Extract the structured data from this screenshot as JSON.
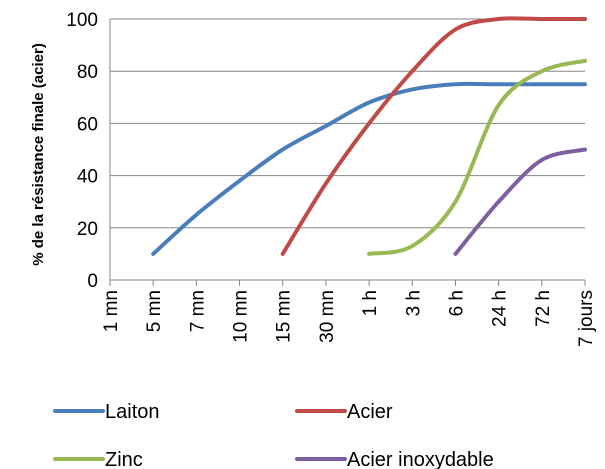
{
  "chart_data": {
    "type": "line",
    "title": "",
    "xlabel": "",
    "ylabel": "% de la résistance finale (acier)",
    "ylim": [
      0,
      100
    ],
    "yticks": [
      0,
      20,
      40,
      60,
      80,
      100
    ],
    "categories": [
      "1 mn",
      "5 mn",
      "7 mn",
      "10 mn",
      "15 mn",
      "30 mn",
      "1 h",
      "3 h",
      "6 h",
      "24 h",
      "72 h",
      "7 jours"
    ],
    "grid": true,
    "legend_position": "bottom",
    "series": [
      {
        "name": "Laiton",
        "color": "#4a7ebb",
        "points": [
          [
            1,
            10
          ],
          [
            2,
            25
          ],
          [
            3,
            38
          ],
          [
            4,
            50
          ],
          [
            5,
            59
          ],
          [
            6,
            68
          ],
          [
            7,
            73
          ],
          [
            8,
            75
          ],
          [
            9,
            75
          ],
          [
            10,
            75
          ],
          [
            11,
            75
          ]
        ]
      },
      {
        "name": "Acier",
        "color": "#be4b48",
        "points": [
          [
            4,
            10
          ],
          [
            5,
            37
          ],
          [
            6,
            60
          ],
          [
            7,
            80
          ],
          [
            8,
            96
          ],
          [
            9,
            100
          ],
          [
            10,
            100
          ],
          [
            11,
            100
          ]
        ]
      },
      {
        "name": "Zinc",
        "color": "#98b954",
        "points": [
          [
            6,
            10
          ],
          [
            7,
            13
          ],
          [
            8,
            30
          ],
          [
            9,
            67
          ],
          [
            10,
            80
          ],
          [
            11,
            84
          ]
        ]
      },
      {
        "name": "Acier inoxydable",
        "color": "#7d5fa0",
        "points": [
          [
            8,
            10
          ],
          [
            9,
            30
          ],
          [
            10,
            46
          ],
          [
            11,
            50
          ]
        ]
      }
    ]
  }
}
